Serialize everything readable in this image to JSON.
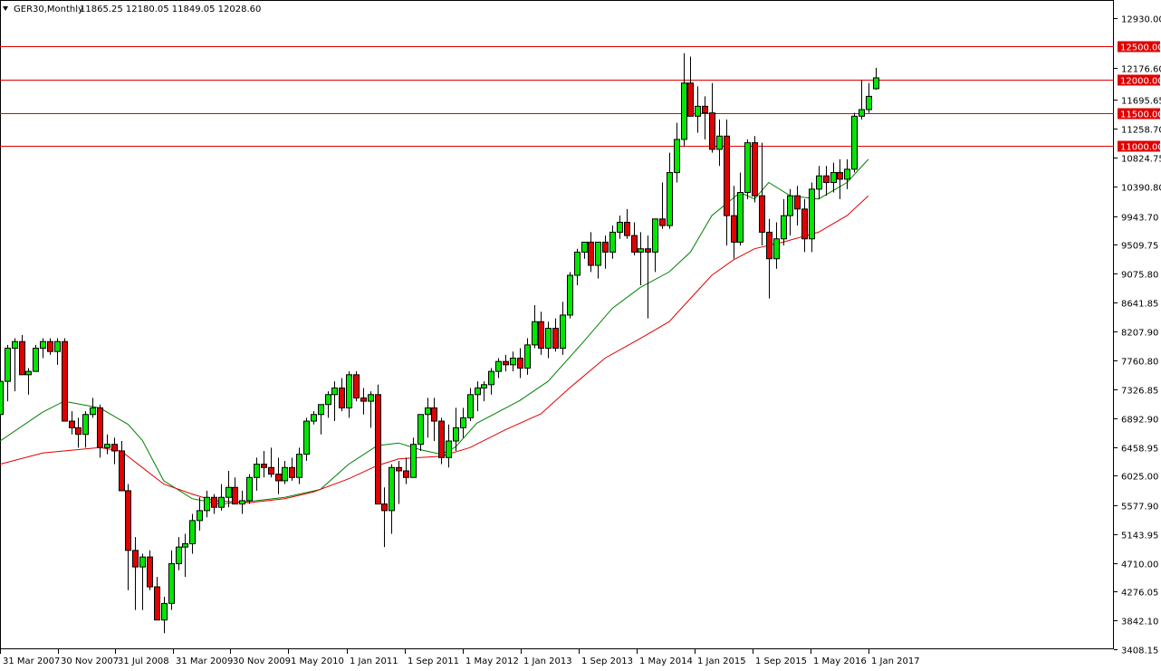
{
  "header": {
    "symbol": "GER30,Monthly",
    "ohlc": "11865.25 12180.05 11849.05 12028.60",
    "menu_icon": "triangle-down-icon"
  },
  "colors": {
    "bull": "#00e600",
    "bear": "#e00000",
    "wick": "#000000",
    "ma_fast": "#008000",
    "ma_slow": "#e00000",
    "level_line": "#e00000",
    "level_label_bg": "#e00000"
  },
  "chart_data": {
    "type": "candlestick",
    "title": "GER30,Monthly",
    "ohlc_readout": "11865.25 12180.05 11849.05 12028.60",
    "y_range": [
      3408.15,
      12930.0
    ],
    "y_ticks": [
      "12930.00",
      "12176.60",
      "11695.65",
      "11258.70",
      "10824.75",
      "10390.80",
      "9943.70",
      "9509.75",
      "9075.80",
      "8641.85",
      "8207.90",
      "7760.80",
      "7326.85",
      "6892.90",
      "6458.95",
      "6025.00",
      "5577.90",
      "5143.95",
      "4710.00",
      "4276.05",
      "3842.10",
      "3408.15"
    ],
    "x_labels": [
      "31 Mar 2007",
      "30 Nov 2007",
      "31 Jul 2008",
      "31 Mar 2009",
      "30 Nov 2009",
      "1 May 2010",
      "1 Jan 2011",
      "1 Sep 2011",
      "1 May 2012",
      "1 Jan 2013",
      "1 Sep 2013",
      "1 May 2014",
      "1 Jan 2015",
      "1 Sep 2015",
      "1 May 2016",
      "1 Jan 2017"
    ],
    "horizontal_levels": [
      "12500.00",
      "12000.00",
      "11500.00",
      "11000.00"
    ],
    "candles": [
      [
        6950,
        7500,
        6900,
        7450
      ],
      [
        7450,
        8000,
        7150,
        7950
      ],
      [
        7950,
        8100,
        7300,
        8050
      ],
      [
        8050,
        8150,
        7550,
        7550
      ],
      [
        7550,
        7650,
        7250,
        7600
      ],
      [
        7600,
        8000,
        7600,
        7950
      ],
      [
        7950,
        8100,
        7800,
        8050
      ],
      [
        8050,
        8100,
        7850,
        7900
      ],
      [
        7900,
        8100,
        7700,
        8050
      ],
      [
        8050,
        8100,
        6900,
        6850
      ],
      [
        6850,
        7000,
        6650,
        6750
      ],
      [
        6750,
        6900,
        6450,
        6650
      ],
      [
        6650,
        7000,
        6450,
        6950
      ],
      [
        6950,
        7200,
        6900,
        7050
      ],
      [
        7050,
        7100,
        6300,
        6450
      ],
      [
        6450,
        6650,
        6350,
        6500
      ],
      [
        6500,
        6600,
        6200,
        6400
      ],
      [
        6400,
        6550,
        5800,
        5800
      ],
      [
        5800,
        5900,
        4300,
        4900
      ],
      [
        4900,
        5100,
        4000,
        4650
      ],
      [
        4650,
        4850,
        4000,
        4800
      ],
      [
        4800,
        4900,
        4300,
        4350
      ],
      [
        4350,
        4500,
        3850,
        3850
      ],
      [
        3850,
        4200,
        3650,
        4100
      ],
      [
        4100,
        4900,
        4000,
        4700
      ],
      [
        4700,
        5100,
        4600,
        4950
      ],
      [
        4950,
        5150,
        4500,
        5000
      ],
      [
        5000,
        5450,
        4850,
        5350
      ],
      [
        5350,
        5700,
        5200,
        5500
      ],
      [
        5500,
        5800,
        5400,
        5700
      ],
      [
        5700,
        5750,
        5450,
        5550
      ],
      [
        5550,
        5900,
        5500,
        5700
      ],
      [
        5700,
        6100,
        5550,
        5850
      ],
      [
        5850,
        6000,
        5600,
        5600
      ],
      [
        5600,
        5800,
        5450,
        5650
      ],
      [
        5650,
        6050,
        5600,
        6000
      ],
      [
        6000,
        6300,
        5800,
        6200
      ],
      [
        6200,
        6400,
        6000,
        6150
      ],
      [
        6150,
        6450,
        6000,
        6050
      ],
      [
        6050,
        6300,
        5750,
        5950
      ],
      [
        5950,
        6250,
        5900,
        6150
      ],
      [
        6150,
        6300,
        5950,
        6000
      ],
      [
        6000,
        6450,
        5900,
        6350
      ],
      [
        6350,
        6900,
        6250,
        6850
      ],
      [
        6850,
        7000,
        6800,
        6950
      ],
      [
        6950,
        7100,
        6650,
        7100
      ],
      [
        7100,
        7300,
        6900,
        7250
      ],
      [
        7250,
        7450,
        6850,
        7350
      ],
      [
        7350,
        7500,
        7000,
        7050
      ],
      [
        7050,
        7600,
        6900,
        7550
      ],
      [
        7550,
        7600,
        7150,
        7200
      ],
      [
        7200,
        7350,
        6950,
        7150
      ],
      [
        7150,
        7300,
        6750,
        7250
      ],
      [
        7250,
        7400,
        5600,
        5600
      ],
      [
        5600,
        5850,
        4950,
        5500
      ],
      [
        5500,
        6200,
        5150,
        6150
      ],
      [
        6150,
        6250,
        5600,
        6100
      ],
      [
        6100,
        6300,
        5900,
        6000
      ],
      [
        6000,
        6600,
        6000,
        6500
      ],
      [
        6500,
        6950,
        6400,
        6950
      ],
      [
        6950,
        7200,
        6600,
        7050
      ],
      [
        7050,
        7200,
        6550,
        6850
      ],
      [
        6850,
        6900,
        6200,
        6300
      ],
      [
        6300,
        6800,
        6150,
        6550
      ],
      [
        6550,
        7050,
        6400,
        6750
      ],
      [
        6750,
        7050,
        6600,
        6900
      ],
      [
        6900,
        7350,
        6850,
        7250
      ],
      [
        7250,
        7450,
        7000,
        7350
      ],
      [
        7350,
        7450,
        7150,
        7400
      ],
      [
        7400,
        7650,
        7250,
        7600
      ],
      [
        7600,
        7800,
        7500,
        7750
      ],
      [
        7750,
        7850,
        7600,
        7700
      ],
      [
        7700,
        7900,
        7600,
        7800
      ],
      [
        7800,
        7950,
        7500,
        7650
      ],
      [
        7650,
        8100,
        7550,
        8000
      ],
      [
        8000,
        8600,
        7950,
        8350
      ],
      [
        8350,
        8500,
        7850,
        7950
      ],
      [
        7950,
        8350,
        7800,
        8250
      ],
      [
        8250,
        8400,
        7900,
        7950
      ],
      [
        7950,
        8650,
        7850,
        8450
      ],
      [
        8450,
        9100,
        8400,
        9050
      ],
      [
        9050,
        9450,
        8900,
        9400
      ],
      [
        9400,
        9550,
        9300,
        9550
      ],
      [
        9550,
        9700,
        9100,
        9200
      ],
      [
        9200,
        9550,
        9000,
        9550
      ],
      [
        9550,
        9650,
        9150,
        9400
      ],
      [
        9400,
        9800,
        9300,
        9700
      ],
      [
        9700,
        9950,
        9600,
        9850
      ],
      [
        9850,
        10050,
        9600,
        9650
      ],
      [
        9650,
        9850,
        9350,
        9400
      ],
      [
        9400,
        9700,
        8900,
        9450
      ],
      [
        9450,
        9650,
        8400,
        9400
      ],
      [
        9400,
        9900,
        9100,
        9900
      ],
      [
        9900,
        10450,
        9750,
        9800
      ],
      [
        9800,
        10900,
        9750,
        10600
      ],
      [
        10600,
        11350,
        10450,
        11100
      ],
      [
        11100,
        12400,
        11000,
        11950
      ],
      [
        11950,
        12350,
        11500,
        11450
      ],
      [
        11450,
        11900,
        11200,
        11600
      ],
      [
        11600,
        11750,
        11100,
        11500
      ],
      [
        11500,
        11950,
        10900,
        10950
      ],
      [
        10950,
        11400,
        10700,
        11150
      ],
      [
        11150,
        11400,
        9500,
        9950
      ],
      [
        9950,
        10400,
        9300,
        9550
      ],
      [
        9550,
        10600,
        9500,
        10300
      ],
      [
        10300,
        11100,
        10200,
        11050
      ],
      [
        11050,
        11150,
        10150,
        10250
      ],
      [
        10250,
        11050,
        9500,
        9700
      ],
      [
        9700,
        9900,
        8700,
        9300
      ],
      [
        9300,
        9850,
        9150,
        9600
      ],
      [
        9600,
        10200,
        9500,
        9950
      ],
      [
        9950,
        10350,
        9650,
        10250
      ],
      [
        10250,
        10400,
        9800,
        10050
      ],
      [
        10050,
        10200,
        9400,
        9600
      ],
      [
        9600,
        10450,
        9400,
        10350
      ],
      [
        10350,
        10700,
        10200,
        10550
      ],
      [
        10550,
        10700,
        10250,
        10450
      ],
      [
        10450,
        10750,
        10300,
        10600
      ],
      [
        10600,
        10800,
        10200,
        10500
      ],
      [
        10500,
        10800,
        10350,
        10650
      ],
      [
        10650,
        11500,
        10600,
        11450
      ],
      [
        11450,
        12000,
        11400,
        11550
      ],
      [
        11550,
        11950,
        11500,
        11750
      ],
      [
        11865.25,
        12180.05,
        11849.05,
        12028.6
      ]
    ],
    "series": [
      {
        "kind": "moving-average",
        "color": "#008000",
        "points": [
          [
            -10,
            6125
          ],
          [
            -4,
            6350
          ],
          [
            0,
            6549
          ],
          [
            6,
            6986
          ],
          [
            9,
            7150
          ],
          [
            14,
            7050
          ],
          [
            18,
            6800
          ],
          [
            20,
            6560
          ],
          [
            23,
            5950
          ],
          [
            27,
            5680
          ],
          [
            31,
            5600
          ],
          [
            36,
            5650
          ],
          [
            40,
            5700
          ],
          [
            45,
            5820
          ],
          [
            49,
            6200
          ],
          [
            53,
            6480
          ],
          [
            56,
            6520
          ],
          [
            59,
            6420
          ],
          [
            62,
            6350
          ],
          [
            64,
            6460
          ],
          [
            67,
            6820
          ],
          [
            73,
            7160
          ],
          [
            77,
            7450
          ],
          [
            82,
            8050
          ],
          [
            86,
            8550
          ],
          [
            90,
            8870
          ],
          [
            94,
            9100
          ],
          [
            97,
            9400
          ],
          [
            100,
            9950
          ],
          [
            104,
            10300
          ],
          [
            106,
            10200
          ],
          [
            108,
            10450
          ],
          [
            111,
            10250
          ],
          [
            115,
            10200
          ],
          [
            119,
            10450
          ],
          [
            122,
            10800
          ]
        ]
      },
      {
        "kind": "moving-average",
        "color": "#e00000",
        "points": [
          [
            -10,
            5750
          ],
          [
            -4,
            6050
          ],
          [
            0,
            6200
          ],
          [
            6,
            6369
          ],
          [
            9,
            6400
          ],
          [
            14,
            6450
          ],
          [
            17,
            6400
          ],
          [
            20,
            6150
          ],
          [
            23,
            5900
          ],
          [
            27,
            5750
          ],
          [
            30,
            5650
          ],
          [
            35,
            5620
          ],
          [
            40,
            5680
          ],
          [
            44,
            5780
          ],
          [
            49,
            5980
          ],
          [
            53,
            6180
          ],
          [
            56,
            6280
          ],
          [
            59,
            6300
          ],
          [
            62,
            6320
          ],
          [
            66,
            6450
          ],
          [
            71,
            6720
          ],
          [
            76,
            6960
          ],
          [
            80,
            7350
          ],
          [
            85,
            7800
          ],
          [
            90,
            8100
          ],
          [
            94,
            8350
          ],
          [
            97,
            8700
          ],
          [
            100,
            9050
          ],
          [
            103,
            9280
          ],
          [
            106,
            9450
          ],
          [
            110,
            9550
          ],
          [
            115,
            9700
          ],
          [
            119,
            9950
          ],
          [
            122,
            10250
          ]
        ]
      }
    ]
  }
}
